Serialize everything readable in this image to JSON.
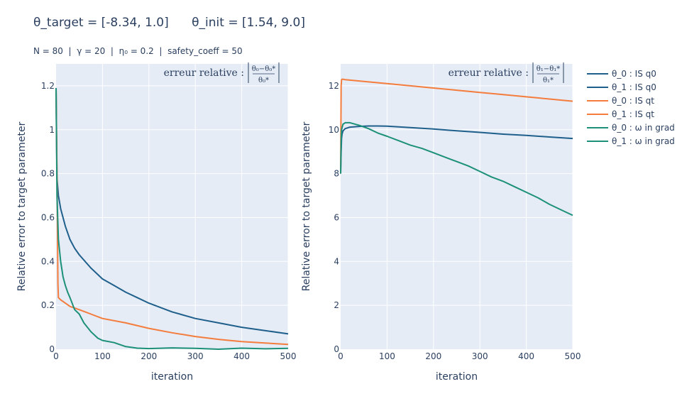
{
  "title": "θ_target = [-8.34, 1.0]      θ_init = [1.54, 9.0]",
  "subtitle": "N = 80  |  γ = 20  |  η₀ = 0.2  |  safety_coeff = 50",
  "colors": {
    "q0": "#1f5f8b",
    "qt": "#f47c3c",
    "omega": "#1c9079",
    "plot_bg": "#e5ecf6",
    "grid": "#ffffff",
    "text": "#2a3f5f"
  },
  "legend": [
    {
      "label": "θ_0 : IS q0",
      "color": "#1f5f8b"
    },
    {
      "label": "θ_1 : IS q0",
      "color": "#1f5f8b"
    },
    {
      "label": "θ_0 : IS qt",
      "color": "#f47c3c"
    },
    {
      "label": "θ_1 : IS qt",
      "color": "#f47c3c"
    },
    {
      "label": "θ_0 : ω in grad",
      "color": "#1c9079"
    },
    {
      "label": "θ_1 : ω in grad",
      "color": "#1c9079"
    }
  ],
  "chart_data": [
    {
      "type": "line",
      "xlabel": "iteration",
      "ylabel": "Relative error to target parameter",
      "annotation": {
        "prefix": "erreur relative :",
        "numerator": "θ₀−θ₀*",
        "denominator": "θ₀*"
      },
      "xlim": [
        0,
        500
      ],
      "ylim": [
        0,
        1.3
      ],
      "xticks": [
        0,
        100,
        200,
        300,
        400,
        500
      ],
      "xtick_labels": [
        "0",
        "100",
        "200",
        "300",
        "400",
        "500"
      ],
      "yticks": [
        0,
        0.2,
        0.4,
        0.6,
        0.8,
        1,
        1.2
      ],
      "ytick_labels": [
        "0",
        "0.2",
        "0.4",
        "0.6",
        "0.8",
        "1",
        "1.2"
      ],
      "grid": true,
      "series": [
        {
          "name": "θ_0 : IS q0",
          "color": "#1f5f8b",
          "x": [
            0,
            1,
            2,
            5,
            10,
            20,
            30,
            40,
            50,
            75,
            100,
            125,
            150,
            175,
            200,
            250,
            300,
            350,
            400,
            450,
            500
          ],
          "y": [
            1.19,
            0.95,
            0.78,
            0.7,
            0.64,
            0.56,
            0.5,
            0.46,
            0.43,
            0.37,
            0.32,
            0.29,
            0.26,
            0.235,
            0.21,
            0.17,
            0.14,
            0.12,
            0.1,
            0.085,
            0.07
          ]
        },
        {
          "name": "θ_0 : IS qt",
          "color": "#f47c3c",
          "x": [
            0,
            2,
            4,
            5,
            10,
            20,
            30,
            50,
            75,
            100,
            150,
            200,
            250,
            300,
            350,
            400,
            450,
            500
          ],
          "y": [
            1.19,
            0.8,
            0.3,
            0.235,
            0.225,
            0.21,
            0.195,
            0.18,
            0.16,
            0.14,
            0.12,
            0.095,
            0.075,
            0.058,
            0.045,
            0.035,
            0.028,
            0.022
          ]
        },
        {
          "name": "θ_0 : ω in grad",
          "color": "#1c9079",
          "x": [
            0,
            2,
            5,
            10,
            15,
            20,
            25,
            30,
            40,
            50,
            60,
            75,
            90,
            100,
            125,
            150,
            175,
            200,
            250,
            300,
            350,
            400,
            450,
            500
          ],
          "y": [
            1.19,
            0.7,
            0.5,
            0.4,
            0.33,
            0.29,
            0.26,
            0.235,
            0.18,
            0.16,
            0.12,
            0.08,
            0.05,
            0.04,
            0.03,
            0.012,
            0.005,
            0.003,
            0.006,
            0.004,
            0.0,
            0.005,
            0.002,
            0.004
          ]
        }
      ]
    },
    {
      "type": "line",
      "xlabel": "iteration",
      "ylabel": "Relative error to target parameter",
      "annotation": {
        "prefix": "erreur relative :",
        "numerator": "θ₁−θ₁*",
        "denominator": "θ₁*"
      },
      "xlim": [
        0,
        500
      ],
      "ylim": [
        0,
        13
      ],
      "xticks": [
        0,
        100,
        200,
        300,
        400,
        500
      ],
      "xtick_labels": [
        "0",
        "100",
        "200",
        "300",
        "400",
        "500"
      ],
      "yticks": [
        0,
        2,
        4,
        6,
        8,
        10,
        12
      ],
      "ytick_labels": [
        "0",
        "2",
        "4",
        "6",
        "8",
        "10",
        "12"
      ],
      "grid": true,
      "series": [
        {
          "name": "θ_1 : IS q0",
          "color": "#1f5f8b",
          "x": [
            0,
            1,
            2,
            3,
            5,
            10,
            20,
            40,
            60,
            80,
            100,
            150,
            200,
            250,
            300,
            350,
            400,
            450,
            500
          ],
          "y": [
            8.0,
            9.0,
            9.6,
            9.8,
            9.95,
            10.05,
            10.12,
            10.15,
            10.17,
            10.17,
            10.16,
            10.1,
            10.03,
            9.95,
            9.88,
            9.8,
            9.74,
            9.67,
            9.6
          ]
        },
        {
          "name": "θ_1 : IS qt",
          "color": "#f47c3c",
          "x": [
            0,
            1,
            2,
            3,
            5,
            10,
            50,
            100,
            150,
            200,
            250,
            300,
            350,
            400,
            450,
            500
          ],
          "y": [
            8.0,
            12.0,
            12.28,
            12.3,
            12.3,
            12.28,
            12.2,
            12.1,
            12.0,
            11.9,
            11.8,
            11.7,
            11.6,
            11.5,
            11.4,
            11.3
          ]
        },
        {
          "name": "θ_1 : ω in grad",
          "color": "#1c9079",
          "x": [
            0,
            1,
            2,
            5,
            10,
            20,
            40,
            60,
            80,
            100,
            125,
            150,
            175,
            200,
            225,
            250,
            275,
            300,
            325,
            350,
            375,
            400,
            425,
            450,
            475,
            500
          ],
          "y": [
            8.0,
            9.5,
            10.0,
            10.25,
            10.32,
            10.32,
            10.2,
            10.05,
            9.85,
            9.7,
            9.5,
            9.3,
            9.15,
            8.95,
            8.75,
            8.55,
            8.35,
            8.1,
            7.85,
            7.65,
            7.4,
            7.15,
            6.9,
            6.6,
            6.35,
            6.1
          ]
        }
      ]
    }
  ]
}
